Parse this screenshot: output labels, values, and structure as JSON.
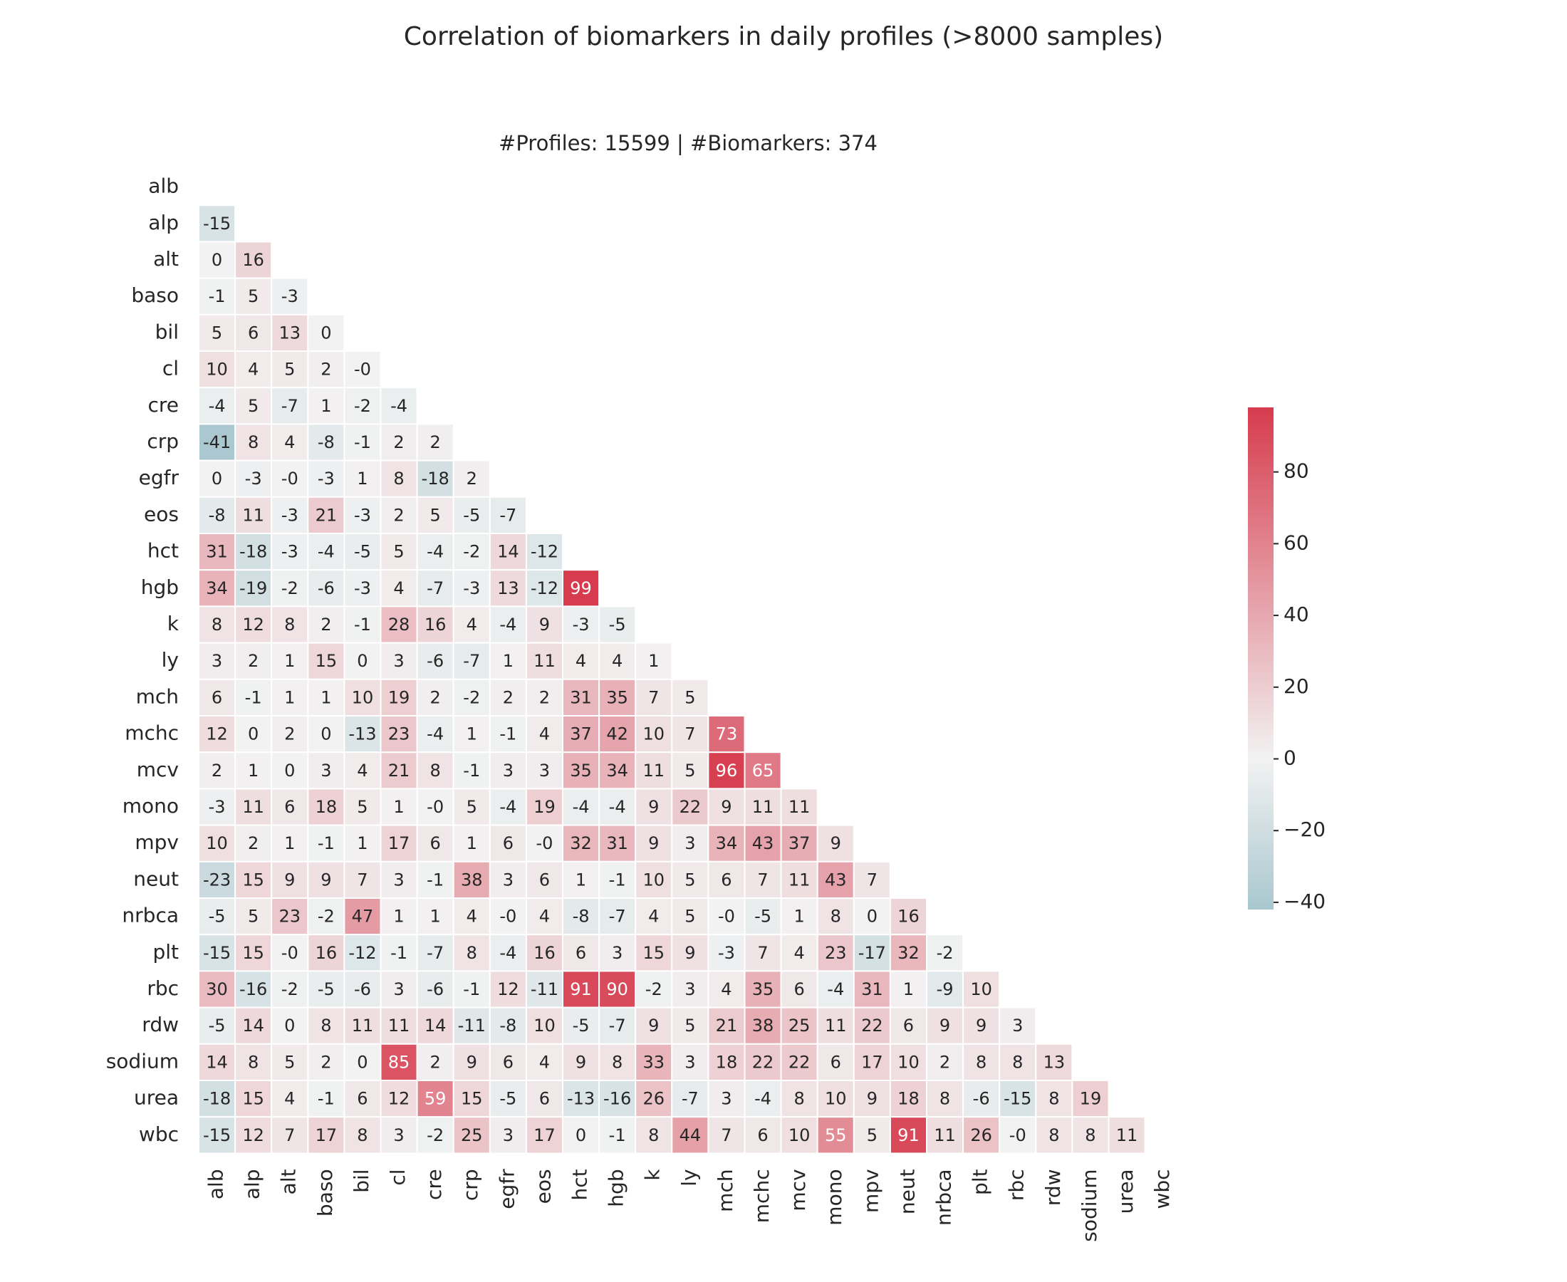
{
  "chart_data": {
    "type": "heatmap",
    "title": "Correlation of biomarkers in daily profiles (>8000 samples)",
    "subtitle": "#Profiles: 15599 | #Biomarkers: 374",
    "labels": [
      "alb",
      "alp",
      "alt",
      "baso",
      "bil",
      "cl",
      "cre",
      "crp",
      "egfr",
      "eos",
      "hct",
      "hgb",
      "k",
      "ly",
      "mch",
      "mchc",
      "mcv",
      "mono",
      "mpv",
      "neut",
      "nrbca",
      "plt",
      "rbc",
      "rdw",
      "sodium",
      "urea",
      "wbc"
    ],
    "cell_text": [
      [],
      [
        "-15"
      ],
      [
        "0",
        "16"
      ],
      [
        "-1",
        "5",
        "-3"
      ],
      [
        "5",
        "6",
        "13",
        "0"
      ],
      [
        "10",
        "4",
        "5",
        "2",
        "-0"
      ],
      [
        "-4",
        "5",
        "-7",
        "1",
        "-2",
        "-4"
      ],
      [
        "-41",
        "8",
        "4",
        "-8",
        "-1",
        "2",
        "2"
      ],
      [
        "0",
        "-3",
        "-0",
        "-3",
        "1",
        "8",
        "-18",
        "2"
      ],
      [
        "-8",
        "11",
        "-3",
        "21",
        "-3",
        "2",
        "5",
        "-5",
        "-7"
      ],
      [
        "31",
        "-18",
        "-3",
        "-4",
        "-5",
        "5",
        "-4",
        "-2",
        "14",
        "-12"
      ],
      [
        "34",
        "-19",
        "-2",
        "-6",
        "-3",
        "4",
        "-7",
        "-3",
        "13",
        "-12",
        "99"
      ],
      [
        "8",
        "12",
        "8",
        "2",
        "-1",
        "28",
        "16",
        "4",
        "-4",
        "9",
        "-3",
        "-5"
      ],
      [
        "3",
        "2",
        "1",
        "15",
        "0",
        "3",
        "-6",
        "-7",
        "1",
        "11",
        "4",
        "4",
        "1"
      ],
      [
        "6",
        "-1",
        "1",
        "1",
        "10",
        "19",
        "2",
        "-2",
        "2",
        "2",
        "31",
        "35",
        "7",
        "5"
      ],
      [
        "12",
        "0",
        "2",
        "0",
        "-13",
        "23",
        "-4",
        "1",
        "-1",
        "4",
        "37",
        "42",
        "10",
        "7",
        "73"
      ],
      [
        "2",
        "1",
        "0",
        "3",
        "4",
        "21",
        "8",
        "-1",
        "3",
        "3",
        "35",
        "34",
        "11",
        "5",
        "96",
        "65"
      ],
      [
        "-3",
        "11",
        "6",
        "18",
        "5",
        "1",
        "-0",
        "5",
        "-4",
        "19",
        "-4",
        "-4",
        "9",
        "22",
        "9",
        "11",
        "11"
      ],
      [
        "10",
        "2",
        "1",
        "-1",
        "1",
        "17",
        "6",
        "1",
        "6",
        "-0",
        "32",
        "31",
        "9",
        "3",
        "34",
        "43",
        "37",
        "9"
      ],
      [
        "-23",
        "15",
        "9",
        "9",
        "7",
        "3",
        "-1",
        "38",
        "3",
        "6",
        "1",
        "-1",
        "10",
        "5",
        "6",
        "7",
        "11",
        "43",
        "7"
      ],
      [
        "-5",
        "5",
        "23",
        "-2",
        "47",
        "1",
        "1",
        "4",
        "-0",
        "4",
        "-8",
        "-7",
        "4",
        "5",
        "-0",
        "-5",
        "1",
        "8",
        "0",
        "16"
      ],
      [
        "-15",
        "15",
        "-0",
        "16",
        "-12",
        "-1",
        "-7",
        "8",
        "-4",
        "16",
        "6",
        "3",
        "15",
        "9",
        "-3",
        "7",
        "4",
        "23",
        "-17",
        "32",
        "-2"
      ],
      [
        "30",
        "-16",
        "-2",
        "-5",
        "-6",
        "3",
        "-6",
        "-1",
        "12",
        "-11",
        "91",
        "90",
        "-2",
        "3",
        "4",
        "35",
        "6",
        "-4",
        "31",
        "1",
        "-9",
        "10"
      ],
      [
        "-5",
        "14",
        "0",
        "8",
        "11",
        "11",
        "14",
        "-11",
        "-8",
        "10",
        "-5",
        "-7",
        "9",
        "5",
        "21",
        "38",
        "25",
        "11",
        "22",
        "6",
        "9",
        "9",
        "3"
      ],
      [
        "14",
        "8",
        "5",
        "2",
        "0",
        "85",
        "2",
        "9",
        "6",
        "4",
        "9",
        "8",
        "33",
        "3",
        "18",
        "22",
        "22",
        "6",
        "17",
        "10",
        "2",
        "8",
        "8",
        "13"
      ],
      [
        "-18",
        "15",
        "4",
        "-1",
        "6",
        "12",
        "59",
        "15",
        "-5",
        "6",
        "-13",
        "-16",
        "26",
        "-7",
        "3",
        "-4",
        "8",
        "10",
        "9",
        "18",
        "8",
        "-6",
        "-15",
        "8",
        "19"
      ],
      [
        "-15",
        "12",
        "7",
        "17",
        "8",
        "3",
        "-2",
        "25",
        "3",
        "17",
        "0",
        "-1",
        "8",
        "44",
        "7",
        "6",
        "10",
        "55",
        "5",
        "91",
        "11",
        "26",
        "-0",
        "8",
        "8",
        "11"
      ]
    ],
    "colorbar": {
      "min": -42,
      "max": 98,
      "ticks": [
        -40,
        -20,
        0,
        20,
        40,
        60,
        80
      ],
      "tick_labels": [
        "−40",
        "−20",
        "0",
        "20",
        "40",
        "60",
        "80"
      ],
      "colors": {
        "negative_end": "#a9c7cf",
        "center": "#f2f2f2",
        "positive_end": "#d63c4e"
      }
    }
  }
}
